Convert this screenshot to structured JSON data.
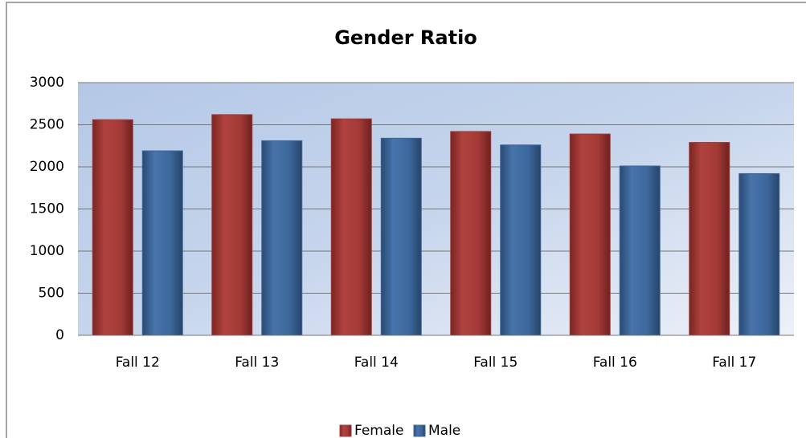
{
  "chart_data": {
    "type": "bar",
    "title": "Gender Ratio",
    "categories": [
      "Fall 12",
      "Fall 13",
      "Fall 14",
      "Fall 15",
      "Fall 16",
      "Fall 17"
    ],
    "series": [
      {
        "name": "Female",
        "color": "#a33a37",
        "values": [
          2560,
          2620,
          2570,
          2420,
          2390,
          2290
        ]
      },
      {
        "name": "Male",
        "color": "#3c679c",
        "values": [
          2190,
          2310,
          2340,
          2260,
          2010,
          1920
        ]
      }
    ],
    "ylim": [
      0,
      3000
    ],
    "yticks": [
      0,
      500,
      1000,
      1500,
      2000,
      2500,
      3000
    ],
    "grid": true,
    "legend": "bottom"
  }
}
